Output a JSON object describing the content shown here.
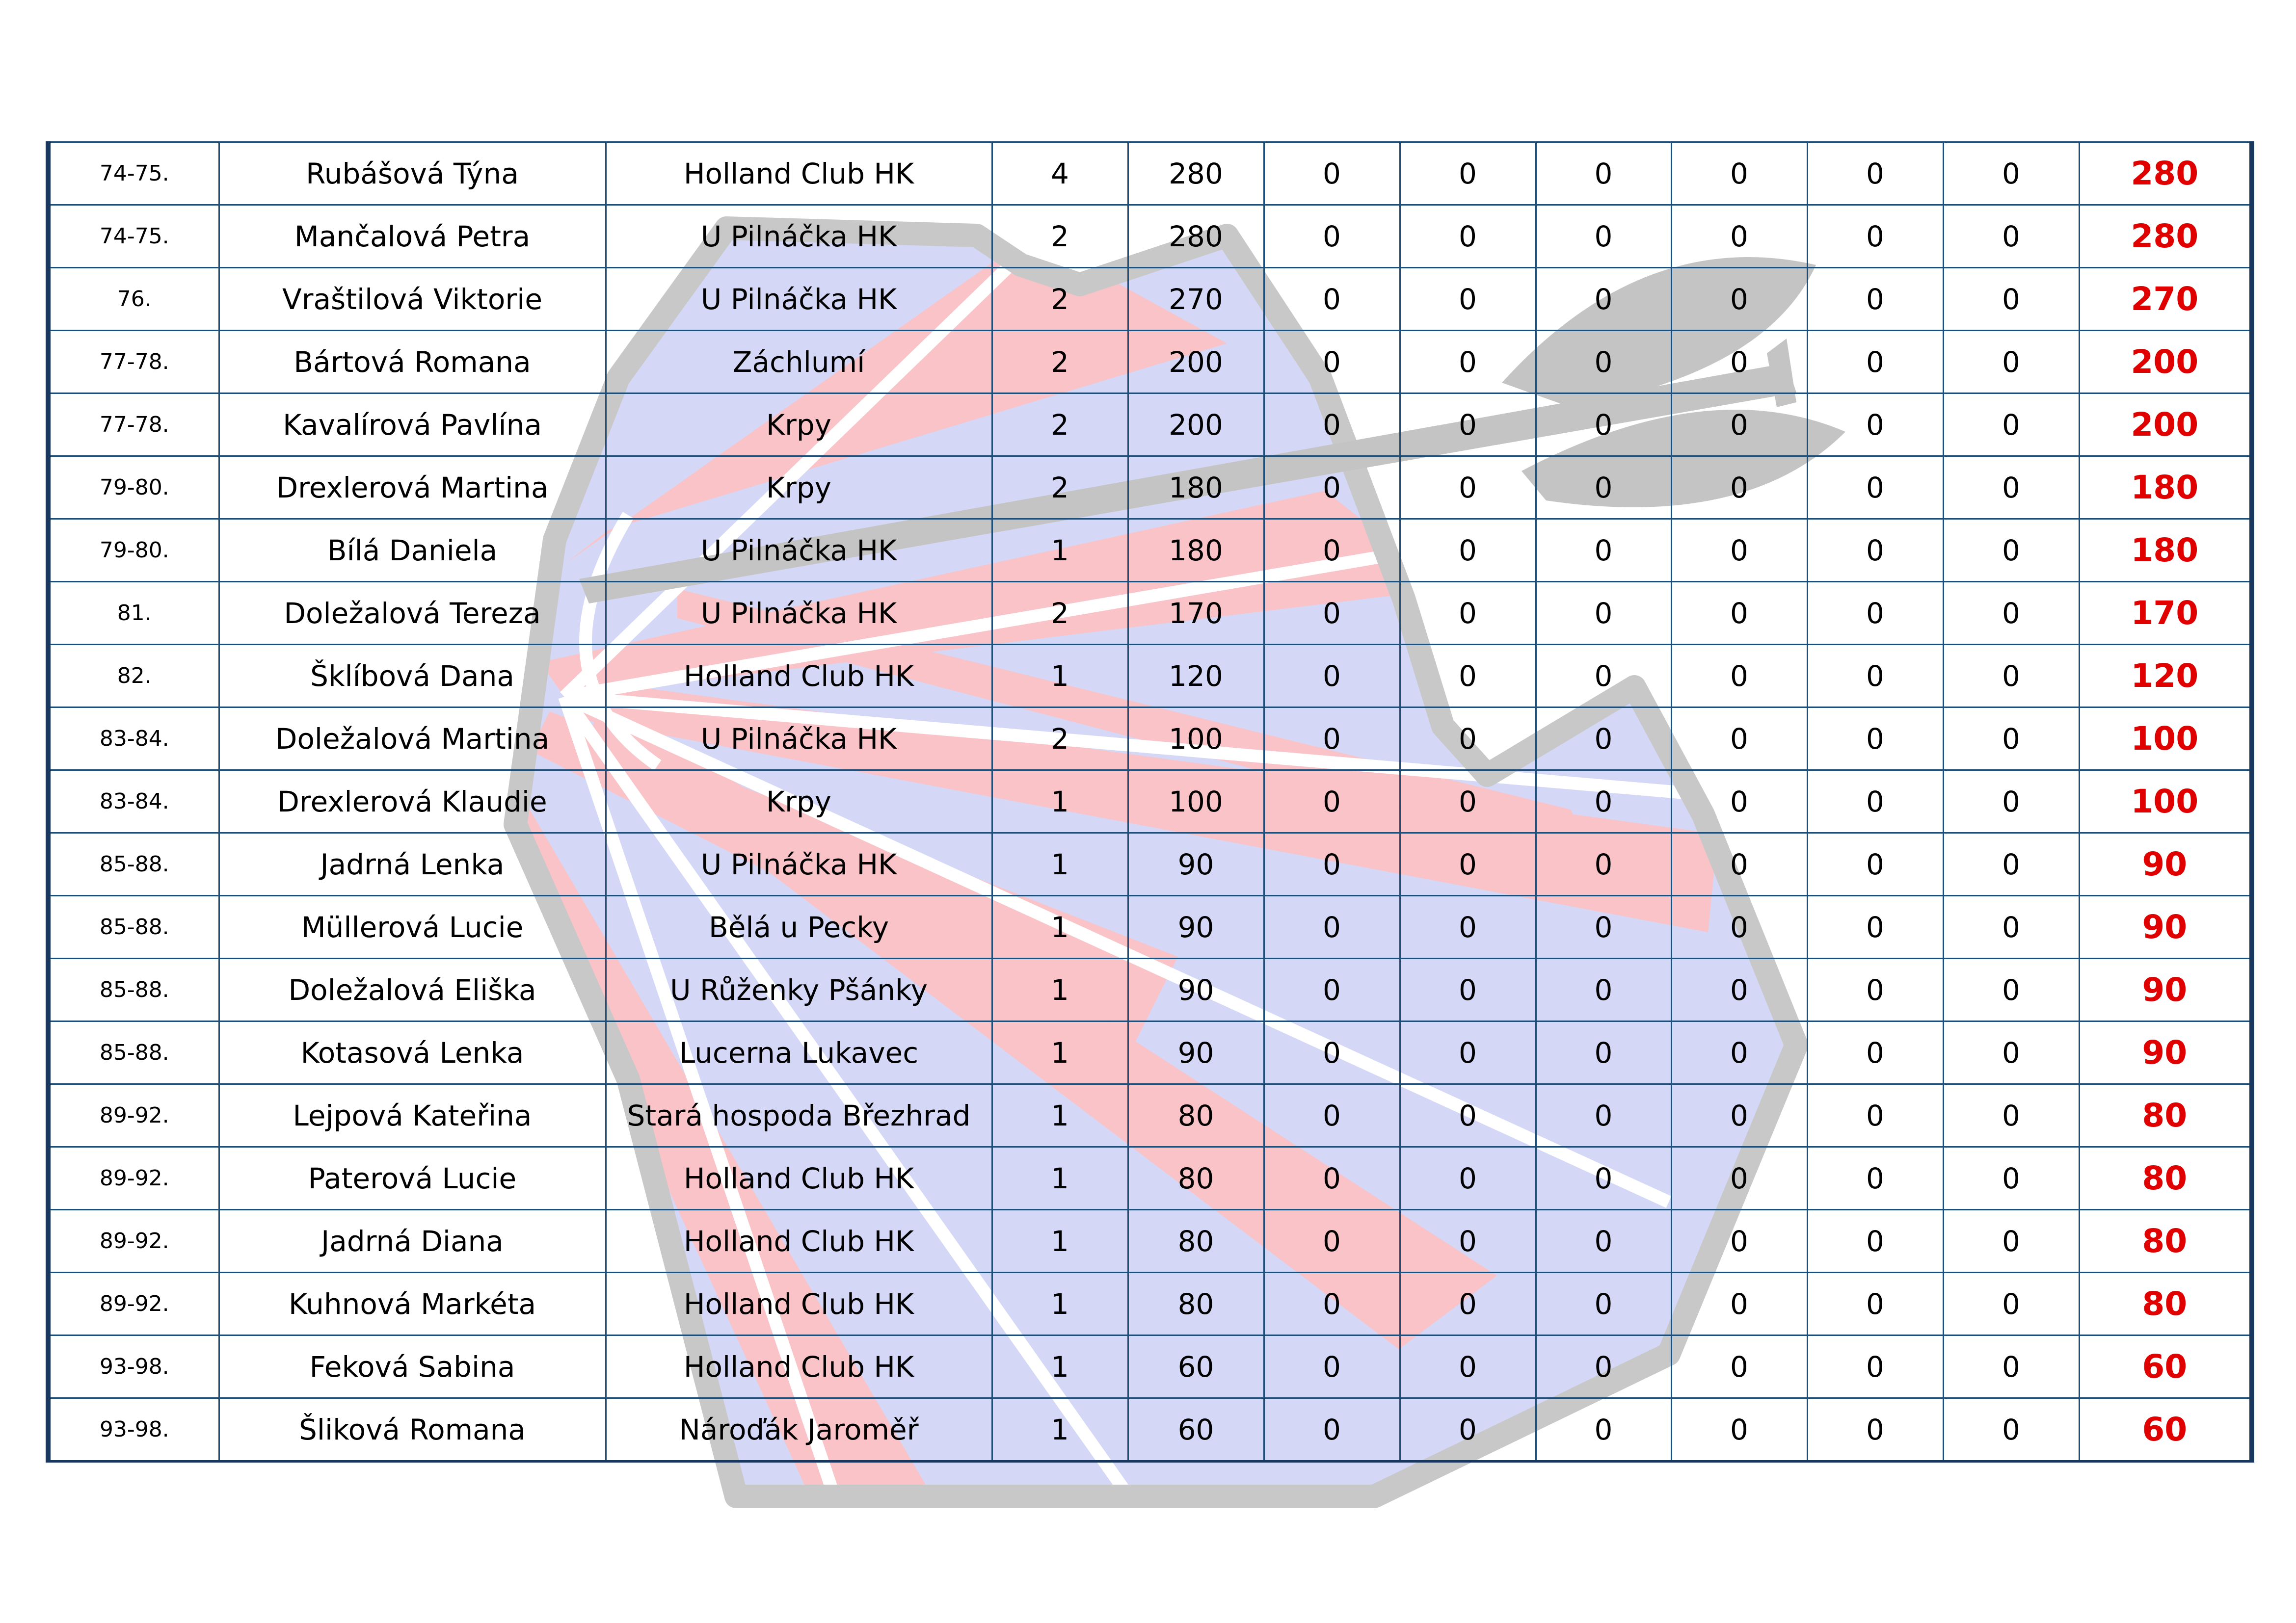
{
  "table": {
    "rows": [
      {
        "rank": "74-75.",
        "name": "Rubášová Týna",
        "club": "Holland Club HK",
        "n": "4",
        "p1": "280",
        "c1": "0",
        "c2": "0",
        "c3": "0",
        "c4": "0",
        "c5": "0",
        "c6": "0",
        "total": "280"
      },
      {
        "rank": "74-75.",
        "name": "Mančalová Petra",
        "club": "U Pilnáčka HK",
        "n": "2",
        "p1": "280",
        "c1": "0",
        "c2": "0",
        "c3": "0",
        "c4": "0",
        "c5": "0",
        "c6": "0",
        "total": "280"
      },
      {
        "rank": "76.",
        "name": "Vraštilová Viktorie",
        "club": "U Pilnáčka HK",
        "n": "2",
        "p1": "270",
        "c1": "0",
        "c2": "0",
        "c3": "0",
        "c4": "0",
        "c5": "0",
        "c6": "0",
        "total": "270"
      },
      {
        "rank": "77-78.",
        "name": "Bártová Romana",
        "club": "Záchlumí",
        "n": "2",
        "p1": "200",
        "c1": "0",
        "c2": "0",
        "c3": "0",
        "c4": "0",
        "c5": "0",
        "c6": "0",
        "total": "200"
      },
      {
        "rank": "77-78.",
        "name": "Kavalírová Pavlína",
        "club": "Krpy",
        "n": "2",
        "p1": "200",
        "c1": "0",
        "c2": "0",
        "c3": "0",
        "c4": "0",
        "c5": "0",
        "c6": "0",
        "total": "200"
      },
      {
        "rank": "79-80.",
        "name": "Drexlerová Martina",
        "club": "Krpy",
        "n": "2",
        "p1": "180",
        "c1": "0",
        "c2": "0",
        "c3": "0",
        "c4": "0",
        "c5": "0",
        "c6": "0",
        "total": "180"
      },
      {
        "rank": "79-80.",
        "name": "Bílá Daniela",
        "club": "U Pilnáčka HK",
        "n": "1",
        "p1": "180",
        "c1": "0",
        "c2": "0",
        "c3": "0",
        "c4": "0",
        "c5": "0",
        "c6": "0",
        "total": "180"
      },
      {
        "rank": "81.",
        "name": "Doležalová Tereza",
        "club": "U Pilnáčka HK",
        "n": "2",
        "p1": "170",
        "c1": "0",
        "c2": "0",
        "c3": "0",
        "c4": "0",
        "c5": "0",
        "c6": "0",
        "total": "170"
      },
      {
        "rank": "82.",
        "name": "Šklíbová Dana",
        "club": "Holland Club HK",
        "n": "1",
        "p1": "120",
        "c1": "0",
        "c2": "0",
        "c3": "0",
        "c4": "0",
        "c5": "0",
        "c6": "0",
        "total": "120"
      },
      {
        "rank": "83-84.",
        "name": "Doležalová Martina",
        "club": "U Pilnáčka HK",
        "n": "2",
        "p1": "100",
        "c1": "0",
        "c2": "0",
        "c3": "0",
        "c4": "0",
        "c5": "0",
        "c6": "0",
        "total": "100"
      },
      {
        "rank": "83-84.",
        "name": "Drexlerová Klaudie",
        "club": "Krpy",
        "n": "1",
        "p1": "100",
        "c1": "0",
        "c2": "0",
        "c3": "0",
        "c4": "0",
        "c5": "0",
        "c6": "0",
        "total": "100"
      },
      {
        "rank": "85-88.",
        "name": "Jadrná Lenka",
        "club": "U Pilnáčka HK",
        "n": "1",
        "p1": "90",
        "c1": "0",
        "c2": "0",
        "c3": "0",
        "c4": "0",
        "c5": "0",
        "c6": "0",
        "total": "90"
      },
      {
        "rank": "85-88.",
        "name": "Müllerová Lucie",
        "club": "Bělá u Pecky",
        "n": "1",
        "p1": "90",
        "c1": "0",
        "c2": "0",
        "c3": "0",
        "c4": "0",
        "c5": "0",
        "c6": "0",
        "total": "90"
      },
      {
        "rank": "85-88.",
        "name": "Doležalová Eliška",
        "club": "U Růženky Pšánky",
        "n": "1",
        "p1": "90",
        "c1": "0",
        "c2": "0",
        "c3": "0",
        "c4": "0",
        "c5": "0",
        "c6": "0",
        "total": "90"
      },
      {
        "rank": "85-88.",
        "name": "Kotasová Lenka",
        "club": "Lucerna Lukavec",
        "n": "1",
        "p1": "90",
        "c1": "0",
        "c2": "0",
        "c3": "0",
        "c4": "0",
        "c5": "0",
        "c6": "0",
        "total": "90"
      },
      {
        "rank": "89-92.",
        "name": "Lejpová Kateřina",
        "club": "Stará hospoda Březhrad",
        "n": "1",
        "p1": "80",
        "c1": "0",
        "c2": "0",
        "c3": "0",
        "c4": "0",
        "c5": "0",
        "c6": "0",
        "total": "80"
      },
      {
        "rank": "89-92.",
        "name": "Paterová Lucie",
        "club": "Holland Club HK",
        "n": "1",
        "p1": "80",
        "c1": "0",
        "c2": "0",
        "c3": "0",
        "c4": "0",
        "c5": "0",
        "c6": "0",
        "total": "80"
      },
      {
        "rank": "89-92.",
        "name": "Jadrná Diana",
        "club": "Holland Club HK",
        "n": "1",
        "p1": "80",
        "c1": "0",
        "c2": "0",
        "c3": "0",
        "c4": "0",
        "c5": "0",
        "c6": "0",
        "total": "80"
      },
      {
        "rank": "89-92.",
        "name": "Kuhnová Markéta",
        "club": "Holland Club HK",
        "n": "1",
        "p1": "80",
        "c1": "0",
        "c2": "0",
        "c3": "0",
        "c4": "0",
        "c5": "0",
        "c6": "0",
        "total": "80"
      },
      {
        "rank": "93-98.",
        "name": "Feková Sabina",
        "club": "Holland Club HK",
        "n": "1",
        "p1": "60",
        "c1": "0",
        "c2": "0",
        "c3": "0",
        "c4": "0",
        "c5": "0",
        "c6": "0",
        "total": "60"
      },
      {
        "rank": "93-98.",
        "name": "Šliková Romana",
        "club": "Náro­ďák Jaroměř",
        "n": "1",
        "p1": "60",
        "c1": "0",
        "c2": "0",
        "c3": "0",
        "c4": "0",
        "c5": "0",
        "c6": "0",
        "total": "60"
      }
    ]
  },
  "watermark": {
    "icon": "dartboard-with-dart-icon",
    "colors": {
      "red": "#f9c3c7",
      "blue": "#d4d8f6",
      "grey": "#c8c8c8",
      "line": "#ffffff"
    }
  }
}
